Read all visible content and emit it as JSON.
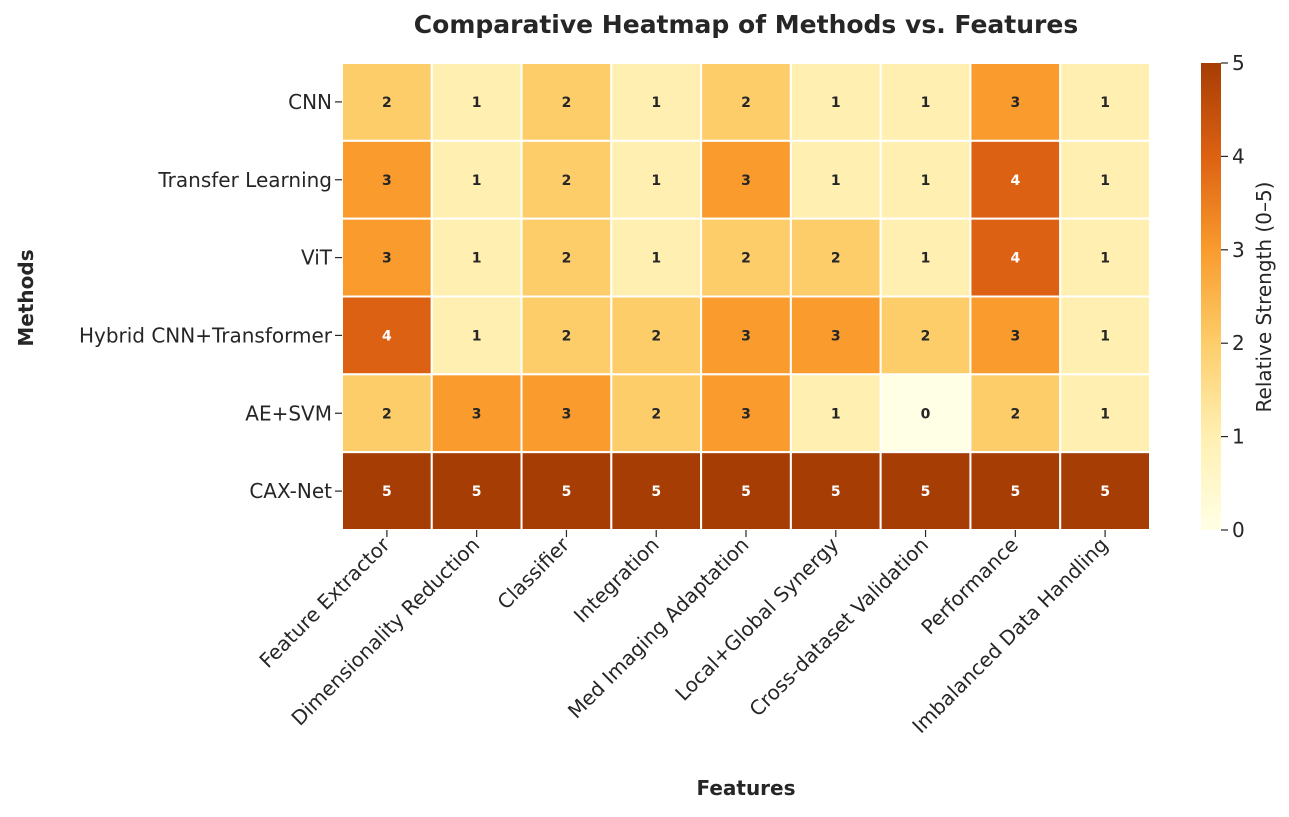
{
  "chart_data": {
    "type": "heatmap",
    "title": "Comparative Heatmap of Methods vs. Features",
    "xlabel": "Features",
    "ylabel": "Methods",
    "x_categories": [
      "Feature Extractor",
      "Dimensionality Reduction",
      "Classifier",
      "Integration",
      "Med Imaging Adaptation",
      "Local+Global Synergy",
      "Cross-dataset Validation",
      "Performance",
      "Imbalanced Data Handling"
    ],
    "y_categories": [
      "CNN",
      "Transfer Learning",
      "ViT",
      "Hybrid CNN+Transformer",
      "AE+SVM",
      "CAX-Net"
    ],
    "values": [
      [
        2,
        1,
        2,
        1,
        2,
        1,
        1,
        3,
        1
      ],
      [
        3,
        1,
        2,
        1,
        3,
        1,
        1,
        4,
        1
      ],
      [
        3,
        1,
        2,
        1,
        2,
        2,
        1,
        4,
        1
      ],
      [
        4,
        1,
        2,
        2,
        3,
        3,
        2,
        3,
        1
      ],
      [
        2,
        3,
        3,
        2,
        3,
        1,
        0,
        2,
        1
      ],
      [
        5,
        5,
        5,
        5,
        5,
        5,
        5,
        5,
        5
      ]
    ],
    "colorbar": {
      "label": "Relative Strength (0–5)",
      "range": [
        0,
        5
      ],
      "ticks": [
        "0",
        "1",
        "2",
        "3",
        "4",
        "5"
      ],
      "colormap": "YlOrBr"
    },
    "cell_colors": [
      "#ffffe5",
      "#fff0b2",
      "#fdcd6a",
      "#f99b2d",
      "#dd6112",
      "#a63d04"
    ]
  }
}
